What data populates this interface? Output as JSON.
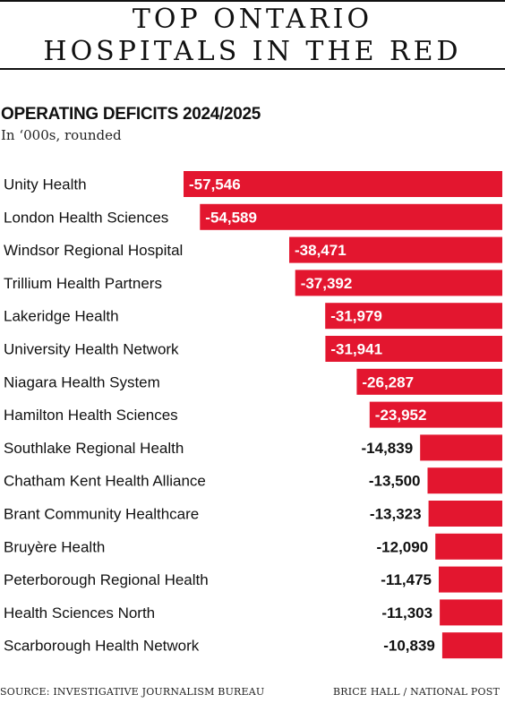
{
  "title": {
    "line1": "TOP ONTARIO",
    "line2": "HOSPITALS IN THE RED"
  },
  "subtitle": "OPERATING DEFICITS 2024/2025",
  "unit_note": "In ‘000s, rounded",
  "footer": {
    "source": "SOURCE: INVESTIGATIVE JOURNALISM BUREAU",
    "credit": "BRICE HALL  / NATIONAL POST"
  },
  "colors": {
    "bar": "#e3162f",
    "text": "#111111",
    "bar_label_inside": "#ffffff"
  },
  "chart_data": {
    "type": "bar",
    "orientation": "horizontal",
    "title": "OPERATING DEFICITS 2024/2025",
    "subtitle": "In ‘000s, rounded",
    "categories": [
      "Unity Health",
      "London Health Sciences",
      "Windsor Regional Hospital",
      "Trillium Health Partners",
      "Lakeridge Health",
      "University Health Network",
      "Niagara Health System",
      "Hamilton Health Sciences",
      "Southlake Regional Health",
      "Chatham Kent Health Alliance",
      "Brant Community Healthcare",
      "Bruyère Health",
      "Peterborough Regional Health",
      "Health Sciences North",
      "Scarborough Health Network"
    ],
    "values": [
      -57546,
      -54589,
      -38471,
      -37392,
      -31979,
      -31941,
      -26287,
      -23952,
      -14839,
      -13500,
      -13323,
      -12090,
      -11475,
      -11303,
      -10839
    ],
    "value_labels": [
      "-57,546",
      "-54,589",
      "-38,471",
      "-37,392",
      "-31,979",
      "-31,941",
      "-26,287",
      "-23,952",
      "-14,839",
      "-13,500",
      "-13,323",
      "-12,090",
      "-11,475",
      "-11,303",
      "-10,839"
    ],
    "grid": false,
    "legend": "none"
  }
}
